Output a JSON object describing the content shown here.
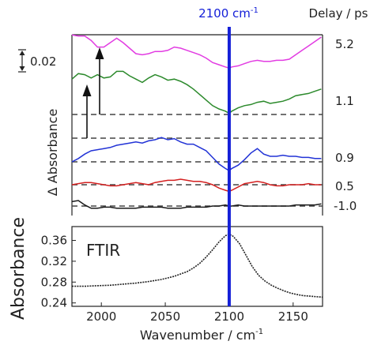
{
  "chart_data": [
    {
      "type": "line",
      "panel": "transient-absorption",
      "ylabel": "Δ Absorbance",
      "delay_header": "Delay / ps",
      "marker_label": "2100 cm-1",
      "marker_label_parts": {
        "num": "2100 cm",
        "sup": "-1"
      },
      "marker_x": 2100,
      "scale_bar_label": "0.02",
      "scale_bar_value": 0.02,
      "xlim": [
        1977,
        2173
      ],
      "grid": false,
      "colors": {
        "marker": "#1520d8",
        "dashed": "#444444",
        "arrows": "#111111"
      },
      "series": [
        {
          "name": "5.2",
          "color": "#e23ce2",
          "baseline": 1.1,
          "x": [
            1977,
            1982,
            1987,
            1992,
            1997,
            2002,
            2007,
            2012,
            2017,
            2022,
            2027,
            2032,
            2037,
            2042,
            2047,
            2052,
            2057,
            2062,
            2067,
            2072,
            2077,
            2082,
            2087,
            2092,
            2097,
            2100,
            2102,
            2107,
            2112,
            2117,
            2122,
            2127,
            2132,
            2137,
            2142,
            2147,
            2152,
            2157,
            2162,
            2167,
            2172
          ],
          "y": [
            0.072,
            0.071,
            0.071,
            0.067,
            0.061,
            0.061,
            0.065,
            0.069,
            0.065,
            0.06,
            0.055,
            0.054,
            0.055,
            0.057,
            0.057,
            0.058,
            0.061,
            0.06,
            0.058,
            0.056,
            0.054,
            0.051,
            0.047,
            0.045,
            0.043,
            0.042,
            0.043,
            0.044,
            0.046,
            0.048,
            0.049,
            0.048,
            0.048,
            0.049,
            0.049,
            0.05,
            0.054,
            0.058,
            0.062,
            0.066,
            0.07
          ]
        },
        {
          "name": "1.1",
          "color": "#2c8a2c",
          "baseline": 1.1,
          "x": [
            1977,
            1982,
            1987,
            1992,
            1997,
            2002,
            2007,
            2012,
            2017,
            2022,
            2027,
            2032,
            2037,
            2042,
            2047,
            2052,
            2057,
            2062,
            2067,
            2072,
            2077,
            2082,
            2087,
            2092,
            2097,
            2100,
            2102,
            2107,
            2112,
            2117,
            2122,
            2127,
            2132,
            2137,
            2142,
            2147,
            2152,
            2157,
            2162,
            2167,
            2172
          ],
          "y": [
            0.032,
            0.037,
            0.036,
            0.033,
            0.036,
            0.033,
            0.034,
            0.039,
            0.039,
            0.035,
            0.032,
            0.029,
            0.033,
            0.036,
            0.034,
            0.031,
            0.032,
            0.03,
            0.027,
            0.023,
            0.018,
            0.013,
            0.008,
            0.005,
            0.003,
            0.001,
            0.003,
            0.006,
            0.008,
            0.009,
            0.011,
            0.012,
            0.01,
            0.011,
            0.012,
            0.014,
            0.017,
            0.018,
            0.019,
            0.021,
            0.023
          ]
        },
        {
          "name": "0.9",
          "color": "#2233d6",
          "baseline": 0.9,
          "x": [
            1977,
            1982,
            1987,
            1992,
            1997,
            2002,
            2007,
            2012,
            2017,
            2022,
            2027,
            2032,
            2037,
            2042,
            2047,
            2052,
            2057,
            2062,
            2067,
            2072,
            2077,
            2082,
            2087,
            2092,
            2097,
            2100,
            2102,
            2107,
            2112,
            2117,
            2122,
            2127,
            2132,
            2137,
            2142,
            2147,
            2152,
            2157,
            2162,
            2167,
            2172
          ],
          "y": [
            0.0,
            0.003,
            0.007,
            0.01,
            0.011,
            0.012,
            0.013,
            0.015,
            0.016,
            0.017,
            0.018,
            0.017,
            0.019,
            0.02,
            0.022,
            0.02,
            0.021,
            0.018,
            0.016,
            0.016,
            0.013,
            0.01,
            0.004,
            -0.002,
            -0.006,
            -0.008,
            -0.006,
            -0.003,
            0.002,
            0.008,
            0.012,
            0.007,
            0.005,
            0.005,
            0.006,
            0.005,
            0.005,
            0.004,
            0.004,
            0.003,
            0.003
          ]
        },
        {
          "name": "0.5",
          "color": "#d42020",
          "baseline": 0.5,
          "x": [
            1977,
            1982,
            1987,
            1992,
            1997,
            2002,
            2007,
            2012,
            2017,
            2022,
            2027,
            2032,
            2037,
            2042,
            2047,
            2052,
            2057,
            2062,
            2067,
            2072,
            2077,
            2082,
            2087,
            2092,
            2097,
            2100,
            2102,
            2107,
            2112,
            2117,
            2122,
            2127,
            2132,
            2137,
            2142,
            2147,
            2152,
            2157,
            2162,
            2167,
            2172
          ],
          "y": [
            0.0,
            0.001,
            0.002,
            0.002,
            0.001,
            0.0,
            -0.001,
            -0.001,
            0.0,
            0.001,
            0.002,
            0.001,
            0.0,
            0.002,
            0.003,
            0.004,
            0.004,
            0.005,
            0.004,
            0.003,
            0.003,
            0.002,
            0.0,
            -0.003,
            -0.005,
            -0.006,
            -0.005,
            -0.002,
            0.001,
            0.002,
            0.003,
            0.002,
            0.0,
            -0.001,
            -0.001,
            0.0,
            0.0,
            0.0,
            0.001,
            0.0,
            0.0
          ]
        },
        {
          "name": "-1.0",
          "color": "#1a1a1a",
          "baseline": -1.0,
          "x": [
            1977,
            1982,
            1987,
            1992,
            1997,
            2002,
            2007,
            2012,
            2017,
            2022,
            2027,
            2032,
            2037,
            2042,
            2047,
            2052,
            2057,
            2062,
            2067,
            2072,
            2077,
            2082,
            2087,
            2092,
            2097,
            2100,
            2102,
            2107,
            2112,
            2117,
            2122,
            2127,
            2132,
            2137,
            2142,
            2147,
            2152,
            2157,
            2162,
            2167,
            2172
          ],
          "y": [
            0.004,
            0.005,
            0.001,
            -0.002,
            -0.002,
            -0.001,
            -0.001,
            -0.002,
            -0.002,
            -0.002,
            -0.002,
            -0.001,
            -0.001,
            -0.001,
            -0.001,
            -0.002,
            -0.002,
            -0.002,
            -0.001,
            -0.001,
            -0.001,
            -0.001,
            0.0,
            0.0,
            0.001,
            0.0,
            0.0,
            0.001,
            0.0,
            0.0,
            0.0,
            0.0,
            0.0,
            0.0,
            0.0,
            0.0,
            0.001,
            0.001,
            0.001,
            0.001,
            0.002
          ]
        }
      ]
    },
    {
      "type": "line",
      "panel": "ftir",
      "annotation": "FTIR",
      "xlabel": "Wavenumber / cm-1",
      "xlabel_parts": {
        "main": "Wavenumber / cm",
        "sup": "-1"
      },
      "ylabel": "Absorbance",
      "xlim": [
        1977,
        2173
      ],
      "ylim": [
        0.235,
        0.385
      ],
      "xticks": [
        2000,
        2050,
        2100,
        2150
      ],
      "yticks": [
        0.24,
        0.28,
        0.32,
        0.36
      ],
      "ytick_labels": [
        "0.24",
        "0.28",
        "0.32",
        "0.36"
      ],
      "grid": false,
      "series": [
        {
          "color": "#222222",
          "x": [
            1977,
            1987,
            1997,
            2007,
            2017,
            2027,
            2037,
            2047,
            2057,
            2067,
            2072,
            2077,
            2082,
            2087,
            2092,
            2097,
            2100,
            2103,
            2108,
            2113,
            2118,
            2123,
            2128,
            2133,
            2138,
            2143,
            2148,
            2153,
            2158,
            2163,
            2168,
            2173
          ],
          "y": [
            0.272,
            0.272,
            0.273,
            0.274,
            0.276,
            0.278,
            0.281,
            0.285,
            0.291,
            0.3,
            0.307,
            0.316,
            0.328,
            0.342,
            0.357,
            0.369,
            0.372,
            0.368,
            0.354,
            0.332,
            0.31,
            0.293,
            0.282,
            0.274,
            0.268,
            0.263,
            0.259,
            0.256,
            0.254,
            0.253,
            0.252,
            0.251
          ]
        }
      ]
    }
  ]
}
